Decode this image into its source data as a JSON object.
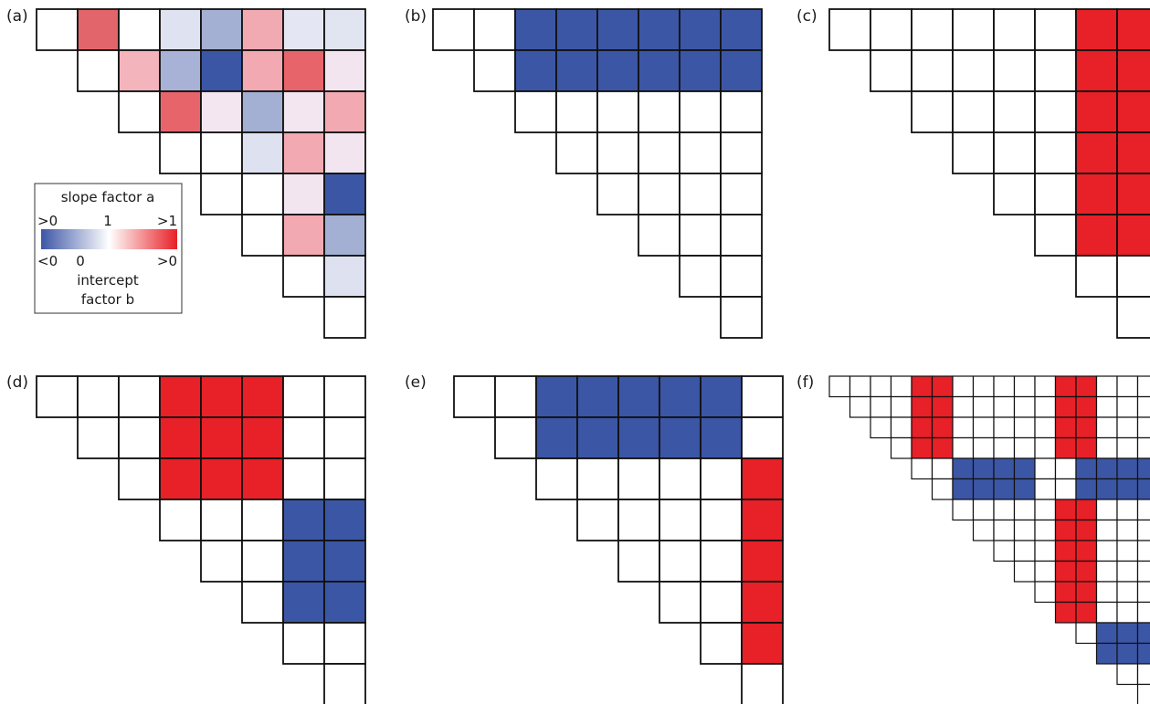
{
  "colors": {
    "blue": "#3c56a6",
    "red": "#e82027",
    "white": "#ffffff",
    "stroke": "#111111"
  },
  "legend": {
    "title": "slope factor a",
    "slope_low": ">0",
    "slope_mid": "1",
    "slope_high": ">1",
    "intercept_low": "<0",
    "intercept_mid": "0",
    "intercept_high": ">0",
    "intercept_title_1": "intercept",
    "intercept_title_2": "factor b"
  },
  "panels": [
    {
      "label": "(a)",
      "size": 8,
      "colored": {
        "0,1": "#e2656b",
        "0,3": "#dfe2f0",
        "0,4": "#a3b0d4",
        "0,5": "#f2aab2",
        "0,6": "#e4e7f3",
        "0,7": "#e1e4f1",
        "1,2": "#f3b4bc",
        "1,3": "#a7b2d6",
        "1,4": "#3c56a6",
        "1,5": "#f2a9b1",
        "1,6": "#e8646b",
        "1,7": "#f3e5ef",
        "2,3": "#e8646b",
        "2,4": "#f3e6f0",
        "2,5": "#a3b0d4",
        "2,6": "#f4e6f0",
        "2,7": "#f2a9b1",
        "3,5": "#dee1f0",
        "3,6": "#f2a9b1",
        "3,7": "#f3e5ef",
        "4,6": "#f3e5ef",
        "4,7": "#3c56a6",
        "5,6": "#f2a9b1",
        "5,7": "#a3b0d4",
        "6,7": "#dee1f0"
      }
    },
    {
      "label": "(b)",
      "size": 8,
      "rects": [
        {
          "rows": [
            0,
            1
          ],
          "cols": [
            2,
            7
          ],
          "color": "blue"
        }
      ]
    },
    {
      "label": "(c)",
      "size": 8,
      "rects": [
        {
          "rows": [
            0,
            5
          ],
          "cols": [
            6,
            7
          ],
          "color": "red"
        }
      ]
    },
    {
      "label": "(d)",
      "size": 8,
      "rects": [
        {
          "rows": [
            0,
            2
          ],
          "cols": [
            3,
            5
          ],
          "color": "red"
        },
        {
          "rows": [
            3,
            5
          ],
          "cols": [
            6,
            7
          ],
          "color": "blue"
        }
      ]
    },
    {
      "label": "(e)",
      "size": 8,
      "rects": [
        {
          "rows": [
            0,
            1
          ],
          "cols": [
            2,
            6
          ],
          "color": "blue"
        },
        {
          "rows": [
            2,
            6
          ],
          "cols": [
            7,
            7
          ],
          "color": "red"
        }
      ]
    },
    {
      "label": "(f)",
      "size": 16,
      "rects": [
        {
          "rows": [
            0,
            3
          ],
          "cols": [
            4,
            5
          ],
          "color": "red"
        },
        {
          "rows": [
            0,
            3
          ],
          "cols": [
            11,
            12
          ],
          "color": "red"
        },
        {
          "rows": [
            4,
            5
          ],
          "cols": [
            6,
            9
          ],
          "color": "blue"
        },
        {
          "rows": [
            4,
            5
          ],
          "cols": [
            12,
            15
          ],
          "color": "blue"
        },
        {
          "rows": [
            6,
            11
          ],
          "cols": [
            11,
            12
          ],
          "color": "red"
        },
        {
          "rows": [
            12,
            13
          ],
          "cols": [
            13,
            15
          ],
          "color": "blue"
        }
      ]
    }
  ]
}
